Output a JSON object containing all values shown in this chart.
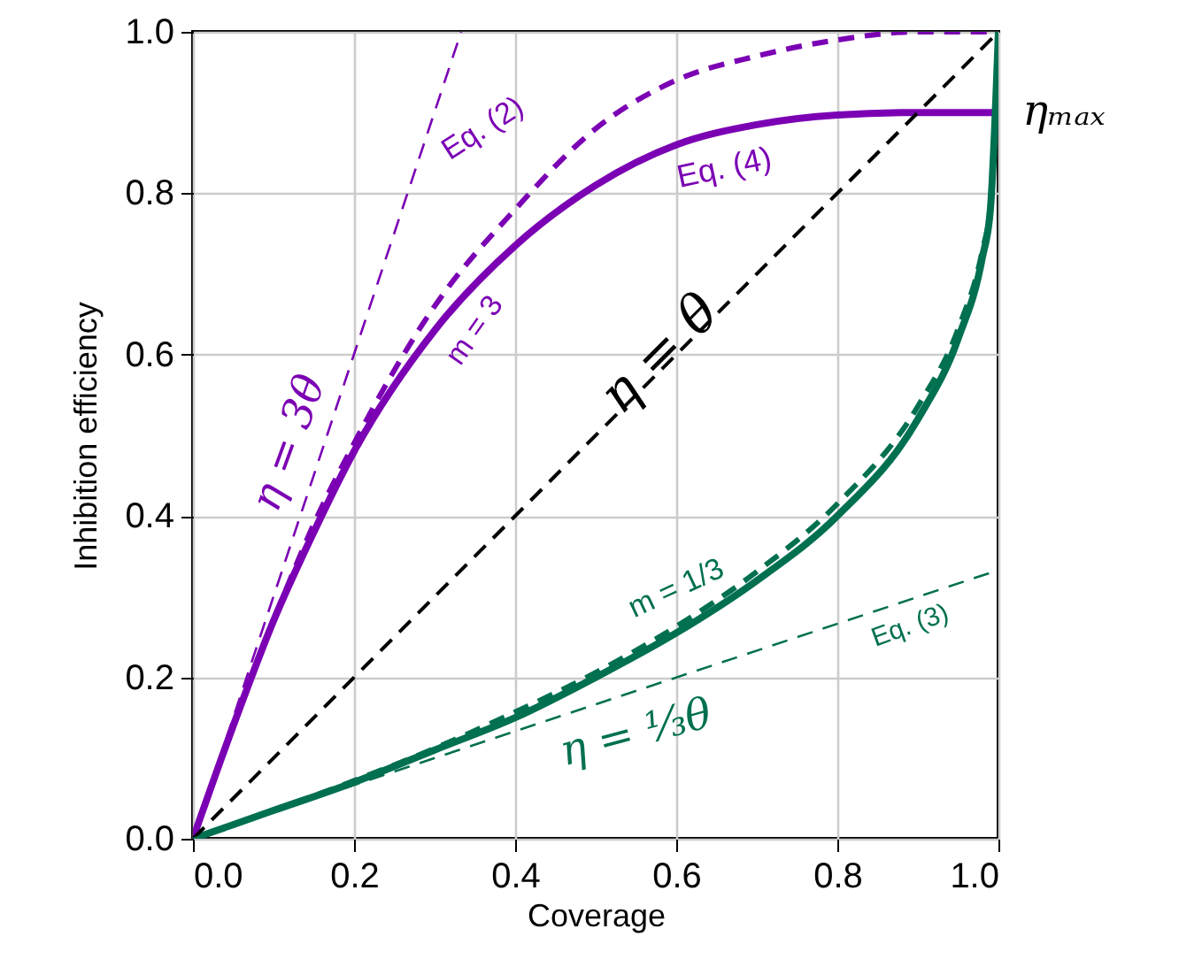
{
  "chart_data": {
    "type": "line",
    "xlabel": "Coverage",
    "ylabel": "Inhibition efficiency",
    "xlim": [
      0,
      1
    ],
    "ylim": [
      0,
      1
    ],
    "xticks": [
      {
        "value": 0,
        "label": "0.0"
      },
      {
        "value": 0.2,
        "label": "0.2"
      },
      {
        "value": 0.4,
        "label": "0.4"
      },
      {
        "value": 0.6,
        "label": "0.6"
      },
      {
        "value": 0.8,
        "label": "0.8"
      },
      {
        "value": 1,
        "label": "1.0"
      }
    ],
    "yticks": [
      {
        "value": 0,
        "label": "0.0"
      },
      {
        "value": 0.2,
        "label": "0.2"
      },
      {
        "value": 0.4,
        "label": "0.4"
      },
      {
        "value": 0.6,
        "label": "0.6"
      },
      {
        "value": 0.8,
        "label": "0.8"
      },
      {
        "value": 1,
        "label": "1.0"
      }
    ],
    "grid": true,
    "series": [
      {
        "color": "#7b00b4",
        "line_style": "dashed",
        "x": [
          0,
          0.05,
          0.1,
          0.15,
          0.2,
          0.3,
          0.4,
          0.5,
          0.6,
          0.7,
          0.8,
          0.9,
          1
        ],
        "values": [
          0,
          0.14,
          0.27,
          0.39,
          0.49,
          0.66,
          0.78,
          0.88,
          0.94,
          0.97,
          0.99,
          1,
          1
        ]
      },
      {
        "color": "#7b00b4",
        "line_style": "solid",
        "x": [
          0,
          0.05,
          0.1,
          0.15,
          0.2,
          0.3,
          0.4,
          0.5,
          0.6,
          0.7,
          0.8,
          0.9,
          1
        ],
        "values": [
          0,
          0.14,
          0.27,
          0.38,
          0.48,
          0.63,
          0.735,
          0.81,
          0.86,
          0.885,
          0.897,
          0.9,
          0.9
        ]
      },
      {
        "color": "#007050",
        "line_style": "dashed",
        "x": [
          0,
          0.1,
          0.2,
          0.3,
          0.4,
          0.5,
          0.6,
          0.7,
          0.8,
          0.9,
          0.95,
          0.98,
          0.99,
          1
        ],
        "values": [
          0,
          0.035,
          0.072,
          0.112,
          0.157,
          0.206,
          0.263,
          0.331,
          0.415,
          0.536,
          0.632,
          0.729,
          0.785,
          1
        ]
      },
      {
        "color": "#007050",
        "line_style": "solid",
        "x": [
          0,
          0.1,
          0.2,
          0.3,
          0.4,
          0.5,
          0.6,
          0.7,
          0.8,
          0.9,
          0.95,
          0.98,
          0.99,
          1
        ],
        "values": [
          0,
          0.035,
          0.07,
          0.11,
          0.15,
          0.2,
          0.255,
          0.32,
          0.4,
          0.52,
          0.62,
          0.72,
          0.78,
          1
        ]
      },
      {
        "color": "#7b00b4",
        "line_style": "dashed",
        "x": [
          0,
          0.333
        ],
        "values": [
          0,
          1
        ]
      },
      {
        "color": "#000000",
        "line_style": "dashed",
        "x": [
          0,
          1
        ],
        "values": [
          0,
          1
        ]
      },
      {
        "color": "#007050",
        "line_style": "dashed",
        "x": [
          0,
          1
        ],
        "values": [
          0,
          0.333
        ]
      }
    ],
    "annotations": [
      "Eq. (2)",
      "Eq. (4)",
      "m = 3",
      "η = 3θ",
      "η = θ",
      "m = 1/3",
      "Eq. (3)",
      "η = ⅓θ",
      "ηₘₐₓ"
    ]
  }
}
